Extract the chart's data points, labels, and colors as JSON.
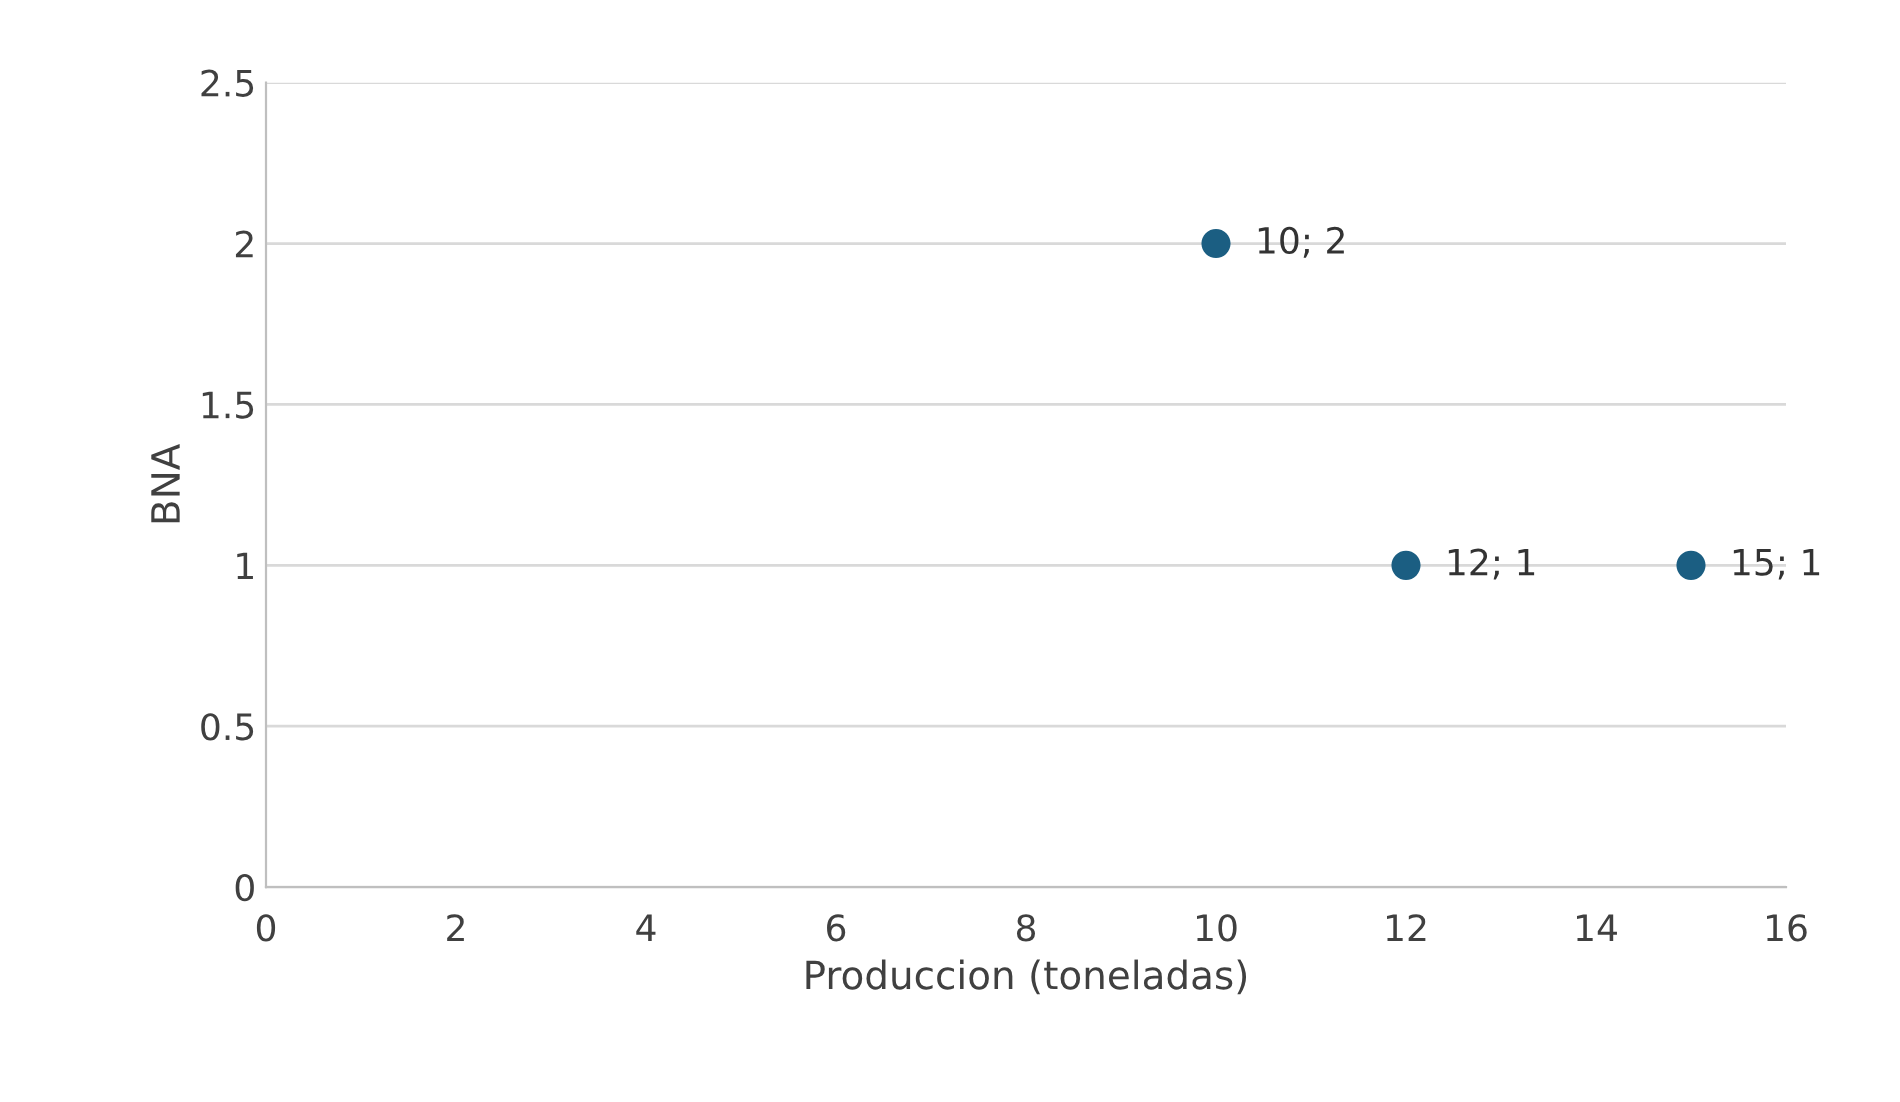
{
  "chart_data": {
    "type": "scatter",
    "xlabel": "Produccion (toneladas)",
    "ylabel": "BNA",
    "x": [
      10,
      12,
      15
    ],
    "series": [
      {
        "color": "#1b5e82",
        "values": [
          2,
          1,
          1
        ],
        "value_labels": [
          "10; 2",
          "12; 1",
          "15; 1"
        ]
      }
    ],
    "xlim": [
      0,
      16
    ],
    "xticks": [
      0,
      2,
      4,
      6,
      8,
      10,
      12,
      14,
      16
    ],
    "ylim": [
      0,
      2.5
    ],
    "yticks": [
      0,
      0.5,
      1,
      1.5,
      2,
      2.5
    ],
    "grid": "y",
    "marker": "circle"
  }
}
